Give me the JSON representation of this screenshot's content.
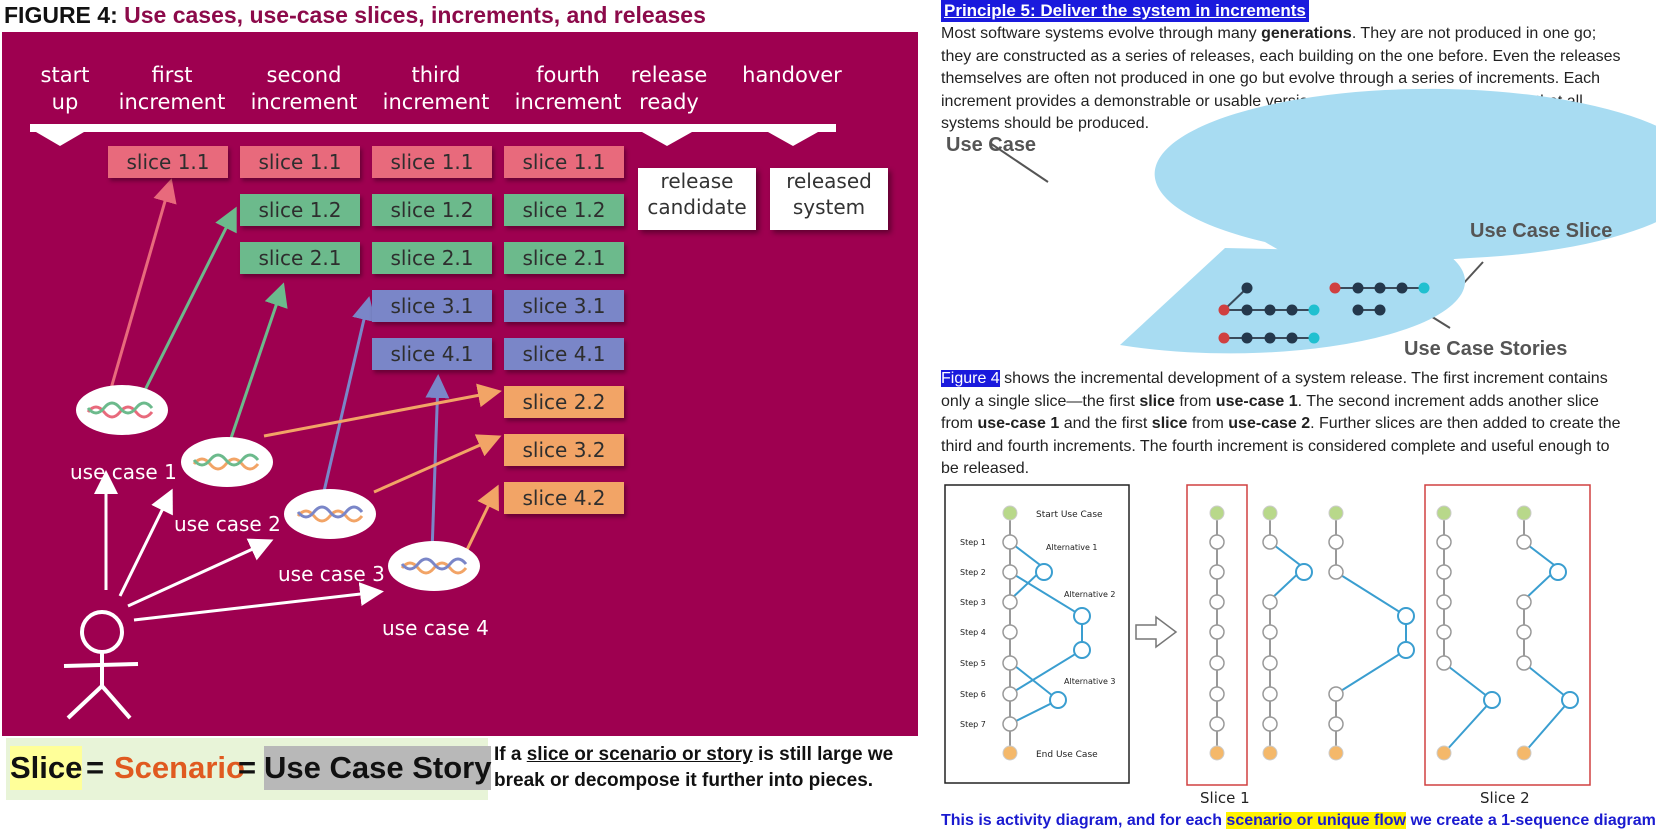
{
  "figure": {
    "prefix": "FIGURE 4: ",
    "title": "Use cases, use-case slices, increments, and releases",
    "headers": [
      {
        "l1": "start",
        "l2": "up"
      },
      {
        "l1": "first",
        "l2": "increment"
      },
      {
        "l1": "second",
        "l2": "increment"
      },
      {
        "l1": "third",
        "l2": "increment"
      },
      {
        "l1": "fourth",
        "l2": "increment"
      },
      {
        "l1": "release",
        "l2": "ready"
      },
      {
        "l1": "",
        "l2": "handover"
      }
    ],
    "slices": {
      "s11": "slice 1.1",
      "s12": "slice 1.2",
      "s21": "slice 2.1",
      "s31": "slice 3.1",
      "s41": "slice 4.1",
      "s22": "slice 2.2",
      "s32": "slice 3.2",
      "s42": "slice 4.2"
    },
    "release_candidate": {
      "l1": "release",
      "l2": "candidate"
    },
    "released_system": {
      "l1": "released",
      "l2": "system"
    },
    "use_cases": [
      "use case 1",
      "use case 2",
      "use case 3",
      "use case 4"
    ],
    "colors": {
      "background": "#9e0050",
      "pink": "#e86a7c",
      "green": "#6cba8c",
      "blue": "#7a86c8",
      "orange": "#f2a466"
    }
  },
  "legend": {
    "slice": "Slice",
    "eq": " = ",
    "scenario": "Scenario",
    "story": "Use Case Story"
  },
  "note": {
    "a": "If a ",
    "u": "slice or scenario or story",
    "b": " is still large we break or decompose it further into pieces."
  },
  "principle": {
    "heading": "Principle 5: Deliver the system in increments",
    "p1": "Most software systems evolve through many ",
    "p1b": "generations",
    "p1c": ". They are not produced in one go; they are constructed as a series of releases, each building on the one before. Even the releases themselves are often not produced in one go but evolve through a series of increments. Each increment provides a demonstrable or usable version of the system. This is the way that all systems should be produced."
  },
  "uc_figure": {
    "use_case": "Use Case",
    "use_case_slice": "Use Case Slice",
    "use_case_stories": "Use Case Stories"
  },
  "fig4_para": {
    "ref": "Figure 4",
    "t1": " shows the incremental development of a system release. The first increment contains only a single slice—the first ",
    "b1": "slice",
    "t2": " from ",
    "b2": "use-case 1",
    "t3": ". The second increment adds another slice from ",
    "b3": "use-case 1",
    "t4": " and the first ",
    "b4": "slice",
    "t5": " from ",
    "b5": "use-case 2",
    "t6": ". Further slices are then added to create the third and fourth increments. The fourth increment is considered complete and useful enough to be released."
  },
  "activity": {
    "start": "Start Use Case",
    "end": "End Use Case",
    "steps": [
      "Step 1",
      "Step 2",
      "Step 3",
      "Step 4",
      "Step 5",
      "Step 6",
      "Step 7"
    ],
    "alt1": "Alternative 1",
    "alt2": "Alternative 2",
    "alt3": "Alternative 3",
    "slice1": "Slice 1",
    "slice2": "Slice 2"
  },
  "bottom": {
    "a": "This is activity diagram, and for each ",
    "hl": "scenario or unique flow",
    "b": " we create a 1-sequence diagram"
  }
}
